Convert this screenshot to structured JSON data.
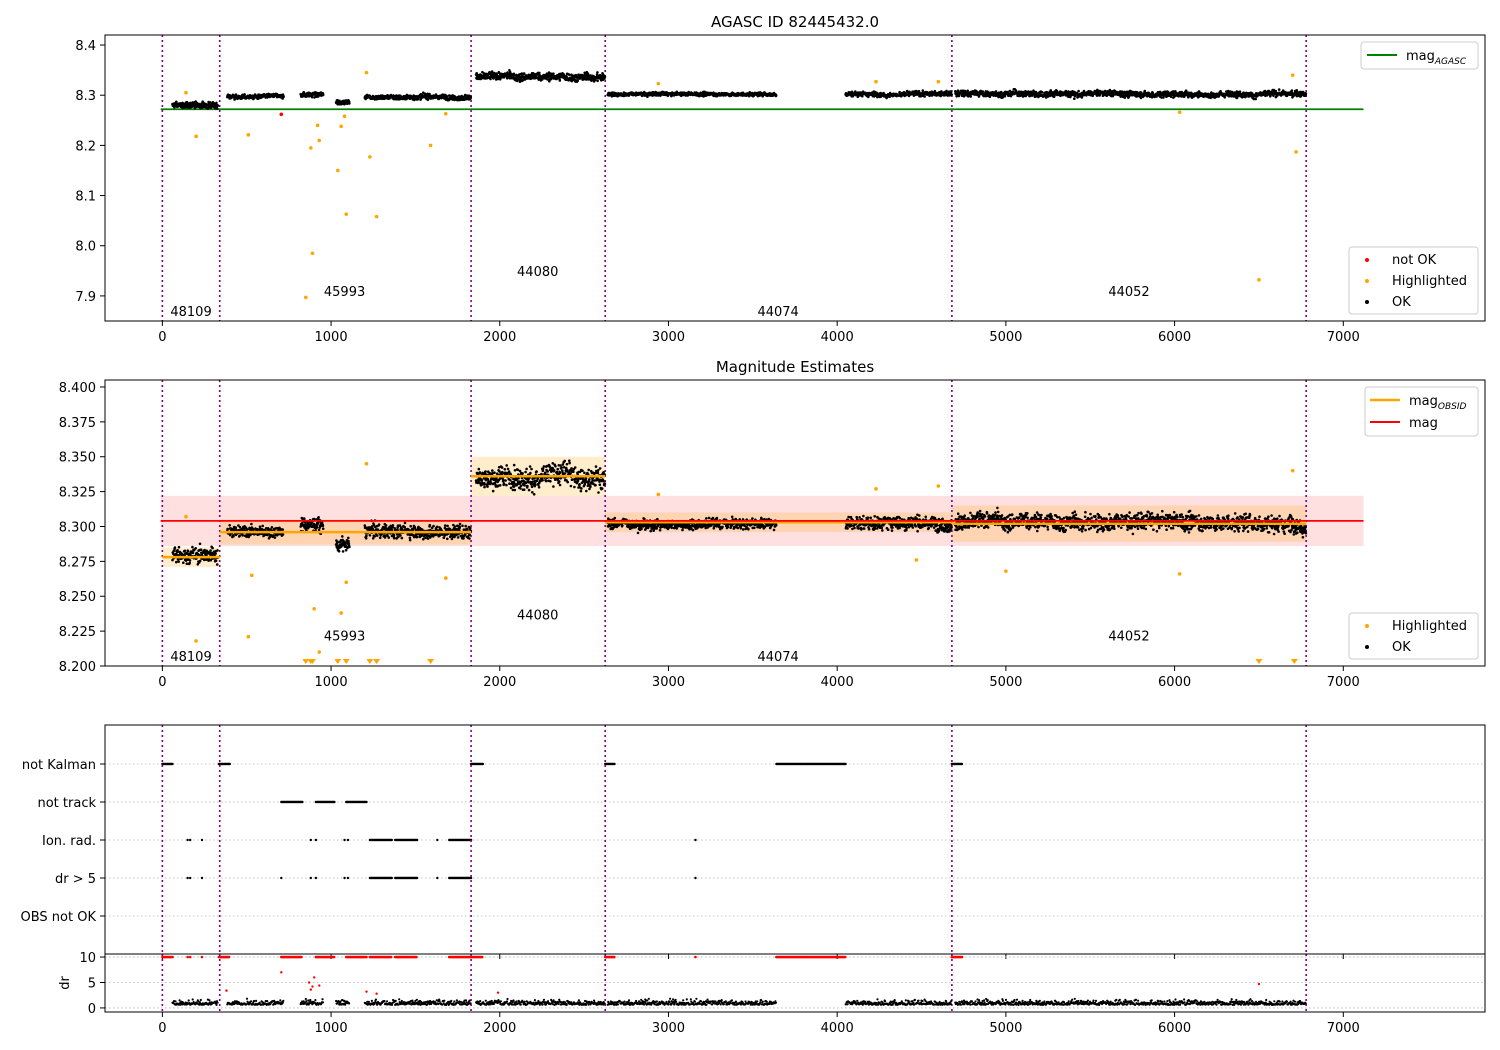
{
  "chart_data": [
    {
      "id": "top",
      "type": "scatter",
      "title": "AGASC ID 82445432.0",
      "xlim": [
        -340,
        7840
      ],
      "ylim": [
        7.85,
        8.42
      ],
      "xticks": [
        0,
        1000,
        2000,
        3000,
        4000,
        5000,
        6000,
        7000
      ],
      "yticks": [
        7.9,
        8.0,
        8.1,
        8.2,
        8.3,
        8.4
      ],
      "ytick_decimals": 1,
      "obs_boundaries": [
        0,
        340,
        1830,
        2625,
        4680,
        6780
      ],
      "obsids": [
        {
          "label": "48109",
          "x": 170,
          "y": 7.87
        },
        {
          "label": "45993",
          "x": 1080,
          "y": 7.91
        },
        {
          "label": "44080",
          "x": 2225,
          "y": 7.95
        },
        {
          "label": "44074",
          "x": 3650,
          "y": 7.87
        },
        {
          "label": "44052",
          "x": 5730,
          "y": 7.91
        }
      ],
      "reference_line": {
        "name": "mag$_{AGASC}$",
        "y": 8.272,
        "x": [
          -10,
          7120
        ],
        "color": "#008000"
      },
      "ok_band": [
        {
          "x0": 60,
          "x1": 330,
          "mean": 8.28,
          "spread": 0.01
        },
        {
          "x0": 385,
          "x1": 720,
          "mean": 8.297,
          "spread": 0.007
        },
        {
          "x0": 820,
          "x1": 955,
          "mean": 8.301,
          "spread": 0.008
        },
        {
          "x0": 1030,
          "x1": 1110,
          "mean": 8.287,
          "spread": 0.008
        },
        {
          "x0": 1200,
          "x1": 1830,
          "mean": 8.297,
          "spread": 0.008
        },
        {
          "x0": 1860,
          "x1": 2625,
          "mean": 8.336,
          "spread": 0.013
        },
        {
          "x0": 2640,
          "x1": 3640,
          "mean": 8.302,
          "spread": 0.006
        },
        {
          "x0": 4050,
          "x1": 4680,
          "mean": 8.303,
          "spread": 0.008
        },
        {
          "x0": 4700,
          "x1": 6780,
          "mean": 8.303,
          "spread": 0.01
        }
      ],
      "highlighted_points": [
        [
          140,
          8.305
        ],
        [
          200,
          8.218
        ],
        [
          510,
          8.221
        ],
        [
          850,
          7.897
        ],
        [
          880,
          8.195
        ],
        [
          890,
          7.985
        ],
        [
          920,
          8.24
        ],
        [
          930,
          8.21
        ],
        [
          1040,
          8.15
        ],
        [
          1060,
          8.238
        ],
        [
          1080,
          8.258
        ],
        [
          1090,
          8.063
        ],
        [
          1210,
          8.345
        ],
        [
          1230,
          8.177
        ],
        [
          1270,
          8.058
        ],
        [
          1590,
          8.2
        ],
        [
          1680,
          8.263
        ],
        [
          2940,
          8.323
        ],
        [
          4230,
          8.327
        ],
        [
          4600,
          8.327
        ],
        [
          6030,
          8.266
        ],
        [
          6500,
          7.932
        ],
        [
          6700,
          8.34
        ],
        [
          6720,
          8.187
        ]
      ],
      "not_ok_points": [
        [
          705,
          8.262
        ]
      ],
      "legend_lines": [
        "mag$_{AGASC}$"
      ],
      "legend_points": [
        "not OK",
        "Highlighted",
        "OK"
      ]
    },
    {
      "id": "middle",
      "type": "scatter",
      "title": "Magnitude Estimates",
      "xlim": [
        -340,
        7840
      ],
      "ylim": [
        8.2,
        8.405
      ],
      "xticks": [
        0,
        1000,
        2000,
        3000,
        4000,
        5000,
        6000,
        7000
      ],
      "yticks": [
        8.2,
        8.225,
        8.25,
        8.275,
        8.3,
        8.325,
        8.35,
        8.375,
        8.4
      ],
      "ytick_decimals": 3,
      "obs_boundaries": [
        0,
        340,
        1830,
        2625,
        4680,
        6780
      ],
      "obsids": [
        {
          "label": "48109",
          "x": 170,
          "y": 8.207
        },
        {
          "label": "45993",
          "x": 1080,
          "y": 8.222
        },
        {
          "label": "44080",
          "x": 2225,
          "y": 8.237
        },
        {
          "label": "44074",
          "x": 3650,
          "y": 8.207
        },
        {
          "label": "44052",
          "x": 5730,
          "y": 8.222
        }
      ],
      "mag": {
        "name": "mag",
        "y": 8.304,
        "band": [
          8.286,
          8.322
        ],
        "x": [
          -10,
          7120
        ],
        "color": "#ff0000"
      },
      "mag_obsid": {
        "name": "mag$_{OBSID}$",
        "color": "#ffa500",
        "segments": [
          {
            "x0": 0,
            "x1": 340,
            "y": 8.278,
            "err": 0.007
          },
          {
            "x0": 340,
            "x1": 1830,
            "y": 8.296,
            "err": 0.009
          },
          {
            "x0": 1830,
            "x1": 2625,
            "y": 8.336,
            "err": 0.014
          },
          {
            "x0": 2625,
            "x1": 4680,
            "y": 8.303,
            "err": 0.007
          },
          {
            "x0": 4680,
            "x1": 6780,
            "y": 8.302,
            "err": 0.013
          }
        ]
      },
      "highlighted_points": [
        [
          140,
          8.307
        ],
        [
          200,
          8.218
        ],
        [
          510,
          8.221
        ],
        [
          530,
          8.265
        ],
        [
          900,
          8.241
        ],
        [
          930,
          8.21
        ],
        [
          1060,
          8.238
        ],
        [
          1090,
          8.26
        ],
        [
          1210,
          8.345
        ],
        [
          1680,
          8.263
        ],
        [
          2940,
          8.323
        ],
        [
          4230,
          8.327
        ],
        [
          4470,
          8.276
        ],
        [
          4600,
          8.329
        ],
        [
          5000,
          8.268
        ],
        [
          6030,
          8.266
        ],
        [
          6700,
          8.34
        ]
      ],
      "below_range_x": [
        850,
        880,
        890,
        1040,
        1090,
        1230,
        1270,
        1590,
        6500,
        6710
      ],
      "legend_lines": [
        "mag$_{OBSID}$",
        "mag"
      ],
      "legend_points": [
        "Highlighted",
        "OK"
      ]
    },
    {
      "id": "flags",
      "type": "scatter",
      "xlim": [
        -340,
        7840
      ],
      "xticks": [
        0,
        1000,
        2000,
        3000,
        4000,
        5000,
        6000,
        7000
      ],
      "obs_boundaries": [
        0,
        340,
        1830,
        2625,
        4680,
        6780
      ],
      "rows": [
        {
          "label": "not Kalman",
          "runs": [
            [
              0,
              60
            ],
            [
              335,
              400
            ],
            [
              1830,
              1900
            ],
            [
              2625,
              2680
            ],
            [
              3640,
              4050
            ],
            [
              4680,
              4740
            ]
          ],
          "points": []
        },
        {
          "label": "not track",
          "runs": [
            [
              705,
              830
            ],
            [
              910,
              1020
            ],
            [
              1090,
              1210
            ]
          ],
          "points": []
        },
        {
          "label": "Ion. rad.",
          "runs": [
            [
              1230,
              1360
            ],
            [
              1380,
              1510
            ],
            [
              1700,
              1830
            ]
          ],
          "points": [
            150,
            165,
            235,
            880,
            910,
            1080,
            1100,
            1630,
            3160
          ]
        },
        {
          "label": "dr > 5",
          "runs": [
            [
              1230,
              1360
            ],
            [
              1380,
              1510
            ],
            [
              1700,
              1830
            ]
          ],
          "points": [
            150,
            165,
            235,
            705,
            880,
            910,
            1080,
            1100,
            1630,
            3160
          ]
        },
        {
          "label": "OBS not OK",
          "runs": [],
          "points": []
        }
      ]
    },
    {
      "id": "dr",
      "type": "scatter",
      "ylabel": "dr",
      "xlim": [
        -340,
        7840
      ],
      "ylim": [
        -0.8,
        10.6
      ],
      "xticks": [
        0,
        1000,
        2000,
        3000,
        4000,
        5000,
        6000,
        7000
      ],
      "yticks": [
        0,
        5,
        10
      ],
      "obs_boundaries": [
        0,
        340,
        1830,
        2625,
        4680,
        6780
      ],
      "ok_runs": [
        [
          60,
          330
        ],
        [
          385,
          720
        ],
        [
          820,
          955
        ],
        [
          1030,
          1110
        ],
        [
          1200,
          1830
        ],
        [
          1860,
          2625
        ],
        [
          2640,
          3640
        ],
        [
          4050,
          4680
        ],
        [
          4700,
          6780
        ]
      ],
      "capped_runs": [
        [
          0,
          60
        ],
        [
          335,
          400
        ],
        [
          705,
          830
        ],
        [
          910,
          1020
        ],
        [
          1090,
          1210
        ],
        [
          1230,
          1360
        ],
        [
          1380,
          1510
        ],
        [
          1700,
          1830
        ],
        [
          1830,
          1900
        ],
        [
          2625,
          2680
        ],
        [
          3640,
          4050
        ],
        [
          4680,
          4740
        ]
      ],
      "capped_points": [
        150,
        165,
        235,
        3160
      ],
      "red_points": [
        [
          705,
          7.0
        ],
        [
          870,
          5.0
        ],
        [
          880,
          3.6
        ],
        [
          890,
          4.2
        ],
        [
          900,
          6.0
        ],
        [
          930,
          4.4
        ],
        [
          1210,
          3.2
        ],
        [
          1270,
          2.8
        ],
        [
          380,
          3.4
        ],
        [
          1990,
          3.0
        ],
        [
          6500,
          4.7
        ]
      ]
    }
  ]
}
